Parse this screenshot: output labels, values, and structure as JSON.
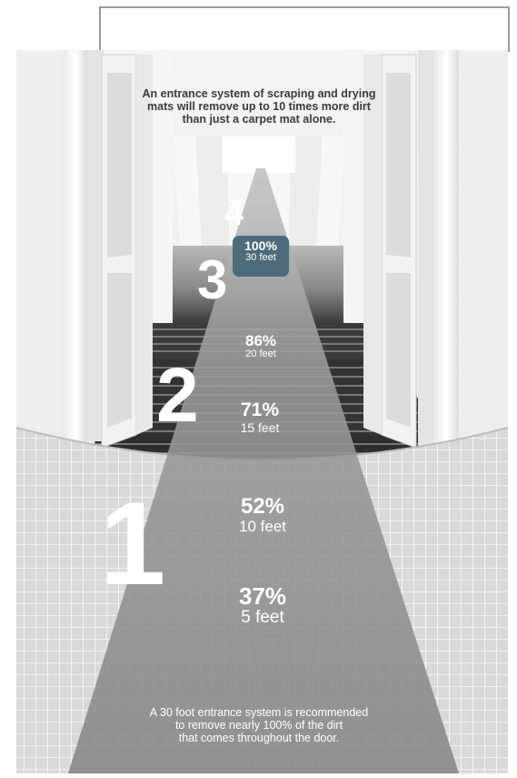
{
  "caption_top": [
    "An entrance system of scraping and drying",
    "mats will remove up to 10 times more dirt",
    "than just a carpet mat alone."
  ],
  "caption_bottom": [
    "A 30 foot entrance system is recommended",
    "to remove nearly 100% of the dirt",
    "that comes throughout the door."
  ],
  "stage_numbers": {
    "one": "1",
    "two": "2",
    "three": "3",
    "four": "4"
  },
  "stats": [
    {
      "percent": "100%",
      "distance": "30 feet",
      "highlighted": true
    },
    {
      "percent": "86%",
      "distance": "20 feet"
    },
    {
      "percent": "71%",
      "distance": "15 feet"
    },
    {
      "percent": "52%",
      "distance": "10 feet"
    },
    {
      "percent": "37%",
      "distance": "5 feet"
    }
  ],
  "colors": {
    "badge": "#4d6b7a",
    "mat_path": "#8c8c8c",
    "tile_floor": "#d6d6d6",
    "stairs": "#3a3a3a",
    "caption_text": "#3b3b3b"
  }
}
